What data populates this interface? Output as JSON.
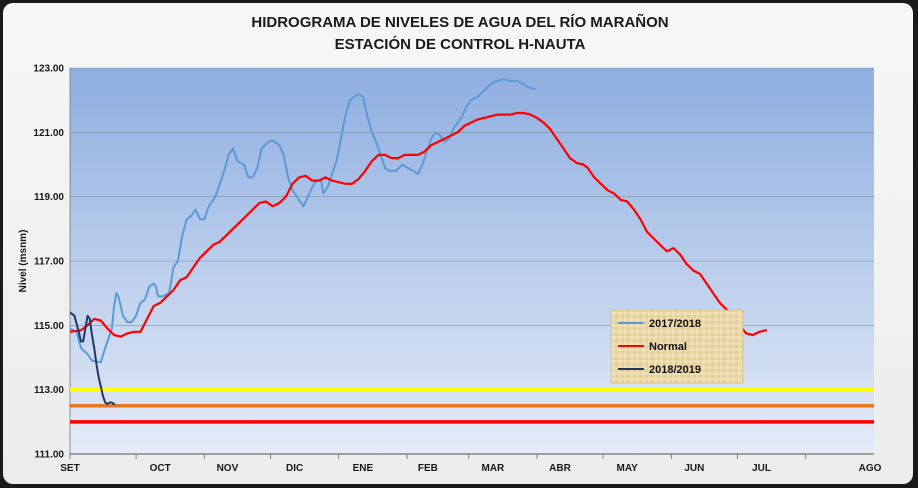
{
  "chart_data": {
    "type": "line",
    "title": "HIDROGRAMA DE NIVELES DE AGUA DEL RÍO MARAÑON",
    "subtitle": "ESTACIÓN DE CONTROL H-NAUTA",
    "xlabel": "",
    "ylabel": "Nivel (msnm)",
    "ylim": [
      111,
      123
    ],
    "yticks": [
      "111.00",
      "113.00",
      "115.00",
      "117.00",
      "119.00",
      "121.00",
      "123.00"
    ],
    "ytick_values": [
      111,
      113,
      115,
      117,
      119,
      121,
      123
    ],
    "x_unit": "day of hydrological year (SET 1 = 0)",
    "xlim": [
      0,
      365
    ],
    "months": [
      "SET",
      "OCT",
      "NOV",
      "DIC",
      "ENE",
      "FEB",
      "MAR",
      "ABR",
      "MAY",
      "JUN",
      "JUL",
      "AGO"
    ],
    "month_positions": [
      0,
      30,
      61,
      91,
      122,
      153,
      181,
      212,
      242,
      273,
      303,
      334
    ],
    "grid": true,
    "legend_position": "right-middle",
    "colors": {
      "series_2017": "#5b9bd5",
      "series_normal": "#ff0000",
      "series_2018": "#1f3864",
      "threshold_yellow": "#ffff00",
      "threshold_orange": "#e87722",
      "threshold_red": "#ff0000"
    },
    "thresholds": [
      {
        "value": 113.0,
        "color": "#ffff00"
      },
      {
        "value": 112.5,
        "color": "#e87722"
      },
      {
        "value": 112.0,
        "color": "#ff0000"
      }
    ],
    "series": [
      {
        "name": "2017/2018",
        "color": "#5b9bd5",
        "points": [
          [
            0,
            114.9
          ],
          [
            3,
            114.8
          ],
          [
            5,
            114.3
          ],
          [
            8,
            114.1
          ],
          [
            10,
            113.9
          ],
          [
            14,
            113.85
          ],
          [
            16,
            114.3
          ],
          [
            19,
            114.9
          ],
          [
            20,
            115.6
          ],
          [
            21,
            116.0
          ],
          [
            22,
            115.9
          ],
          [
            24,
            115.3
          ],
          [
            26,
            115.1
          ],
          [
            28,
            115.1
          ],
          [
            30,
            115.3
          ],
          [
            32,
            115.7
          ],
          [
            34,
            115.8
          ],
          [
            36,
            116.2
          ],
          [
            38,
            116.3
          ],
          [
            39,
            116.2
          ],
          [
            40,
            115.9
          ],
          [
            42,
            115.9
          ],
          [
            45,
            116.0
          ],
          [
            47,
            116.8
          ],
          [
            49,
            117.0
          ],
          [
            51,
            117.8
          ],
          [
            53,
            118.3
          ],
          [
            55,
            118.4
          ],
          [
            57,
            118.6
          ],
          [
            59,
            118.3
          ],
          [
            61,
            118.3
          ],
          [
            63,
            118.7
          ],
          [
            66,
            119.0
          ],
          [
            68,
            119.4
          ],
          [
            70,
            119.8
          ],
          [
            72,
            120.3
          ],
          [
            74,
            120.5
          ],
          [
            76,
            120.1
          ],
          [
            79,
            120.0
          ],
          [
            81,
            119.6
          ],
          [
            83,
            119.6
          ],
          [
            85,
            119.9
          ],
          [
            87,
            120.5
          ],
          [
            90,
            120.7
          ],
          [
            92,
            120.75
          ],
          [
            95,
            120.6
          ],
          [
            97,
            120.3
          ],
          [
            99,
            119.6
          ],
          [
            101,
            119.2
          ],
          [
            104,
            118.9
          ],
          [
            106,
            118.7
          ],
          [
            108,
            119.0
          ],
          [
            110,
            119.3
          ],
          [
            112,
            119.5
          ],
          [
            114,
            119.5
          ],
          [
            115,
            119.1
          ],
          [
            117,
            119.3
          ],
          [
            119,
            119.7
          ],
          [
            121,
            120.1
          ],
          [
            123,
            120.8
          ],
          [
            125,
            121.5
          ],
          [
            127,
            122.0
          ],
          [
            129,
            122.1
          ],
          [
            131,
            122.2
          ],
          [
            133,
            122.1
          ],
          [
            135,
            121.5
          ],
          [
            137,
            121.0
          ],
          [
            139,
            120.7
          ],
          [
            141,
            120.3
          ],
          [
            143,
            119.9
          ],
          [
            145,
            119.8
          ],
          [
            148,
            119.8
          ],
          [
            151,
            120.0
          ],
          [
            153,
            119.9
          ],
          [
            156,
            119.8
          ],
          [
            158,
            119.7
          ],
          [
            160,
            120.0
          ],
          [
            162,
            120.4
          ],
          [
            164,
            120.8
          ],
          [
            166,
            121.0
          ],
          [
            168,
            120.9
          ],
          [
            170,
            120.7
          ],
          [
            172,
            120.8
          ],
          [
            174,
            121.1
          ],
          [
            176,
            121.3
          ],
          [
            178,
            121.5
          ],
          [
            180,
            121.8
          ],
          [
            182,
            122.0
          ],
          [
            185,
            122.1
          ],
          [
            188,
            122.3
          ],
          [
            191,
            122.5
          ],
          [
            194,
            122.6
          ],
          [
            197,
            122.65
          ],
          [
            200,
            122.6
          ],
          [
            203,
            122.6
          ],
          [
            206,
            122.5
          ],
          [
            208,
            122.4
          ],
          [
            211,
            122.35
          ]
        ]
      },
      {
        "name": "Normal",
        "color": "#ff0000",
        "points": [
          [
            0,
            114.8
          ],
          [
            5,
            114.85
          ],
          [
            8,
            115.0
          ],
          [
            11,
            115.2
          ],
          [
            14,
            115.15
          ],
          [
            17,
            114.9
          ],
          [
            20,
            114.7
          ],
          [
            23,
            114.65
          ],
          [
            26,
            114.75
          ],
          [
            29,
            114.8
          ],
          [
            32,
            114.8
          ],
          [
            35,
            115.2
          ],
          [
            38,
            115.6
          ],
          [
            41,
            115.7
          ],
          [
            44,
            115.9
          ],
          [
            47,
            116.1
          ],
          [
            50,
            116.4
          ],
          [
            53,
            116.5
          ],
          [
            56,
            116.8
          ],
          [
            59,
            117.1
          ],
          [
            62,
            117.3
          ],
          [
            65,
            117.5
          ],
          [
            68,
            117.6
          ],
          [
            71,
            117.8
          ],
          [
            74,
            118.0
          ],
          [
            77,
            118.2
          ],
          [
            80,
            118.4
          ],
          [
            83,
            118.6
          ],
          [
            86,
            118.8
          ],
          [
            89,
            118.85
          ],
          [
            92,
            118.7
          ],
          [
            95,
            118.8
          ],
          [
            98,
            119.0
          ],
          [
            101,
            119.4
          ],
          [
            104,
            119.6
          ],
          [
            107,
            119.65
          ],
          [
            110,
            119.5
          ],
          [
            113,
            119.5
          ],
          [
            116,
            119.6
          ],
          [
            119,
            119.5
          ],
          [
            122,
            119.45
          ],
          [
            125,
            119.4
          ],
          [
            128,
            119.4
          ],
          [
            131,
            119.55
          ],
          [
            134,
            119.8
          ],
          [
            137,
            120.1
          ],
          [
            140,
            120.3
          ],
          [
            143,
            120.3
          ],
          [
            146,
            120.2
          ],
          [
            149,
            120.2
          ],
          [
            152,
            120.3
          ],
          [
            155,
            120.3
          ],
          [
            158,
            120.3
          ],
          [
            161,
            120.4
          ],
          [
            164,
            120.6
          ],
          [
            167,
            120.7
          ],
          [
            170,
            120.8
          ],
          [
            173,
            120.9
          ],
          [
            176,
            121.0
          ],
          [
            179,
            121.2
          ],
          [
            182,
            121.3
          ],
          [
            185,
            121.4
          ],
          [
            188,
            121.45
          ],
          [
            191,
            121.5
          ],
          [
            194,
            121.55
          ],
          [
            197,
            121.55
          ],
          [
            200,
            121.55
          ],
          [
            203,
            121.6
          ],
          [
            206,
            121.6
          ],
          [
            209,
            121.55
          ],
          [
            212,
            121.45
          ],
          [
            215,
            121.3
          ],
          [
            218,
            121.1
          ],
          [
            221,
            120.8
          ],
          [
            224,
            120.5
          ],
          [
            227,
            120.2
          ],
          [
            230,
            120.05
          ],
          [
            233,
            120.0
          ],
          [
            235,
            119.9
          ],
          [
            238,
            119.6
          ],
          [
            241,
            119.4
          ],
          [
            244,
            119.2
          ],
          [
            247,
            119.1
          ],
          [
            250,
            118.9
          ],
          [
            253,
            118.85
          ],
          [
            256,
            118.6
          ],
          [
            259,
            118.3
          ],
          [
            262,
            117.9
          ],
          [
            265,
            117.7
          ],
          [
            268,
            117.5
          ],
          [
            271,
            117.3
          ],
          [
            274,
            117.4
          ],
          [
            277,
            117.2
          ],
          [
            280,
            116.9
          ],
          [
            283,
            116.7
          ],
          [
            286,
            116.6
          ],
          [
            289,
            116.3
          ],
          [
            292,
            116.0
          ],
          [
            295,
            115.7
          ],
          [
            298,
            115.5
          ],
          [
            301,
            115.3
          ],
          [
            304,
            115.0
          ],
          [
            307,
            114.75
          ],
          [
            310,
            114.7
          ],
          [
            313,
            114.8
          ],
          [
            316,
            114.85
          ]
        ]
      },
      {
        "name": "2018/2019",
        "color": "#1f3864",
        "points": [
          [
            0,
            115.4
          ],
          [
            2,
            115.3
          ],
          [
            4,
            114.8
          ],
          [
            5,
            114.5
          ],
          [
            6,
            114.5
          ],
          [
            7,
            114.9
          ],
          [
            8,
            115.3
          ],
          [
            9,
            115.2
          ],
          [
            10,
            114.7
          ],
          [
            11,
            114.3
          ],
          [
            12,
            113.8
          ],
          [
            13,
            113.4
          ],
          [
            14,
            113.1
          ],
          [
            15,
            112.8
          ],
          [
            16,
            112.6
          ],
          [
            17,
            112.55
          ],
          [
            18,
            112.6
          ],
          [
            19,
            112.6
          ],
          [
            20,
            112.55
          ]
        ]
      }
    ],
    "legend": [
      "2017/2018",
      "Normal",
      "2018/2019"
    ]
  }
}
